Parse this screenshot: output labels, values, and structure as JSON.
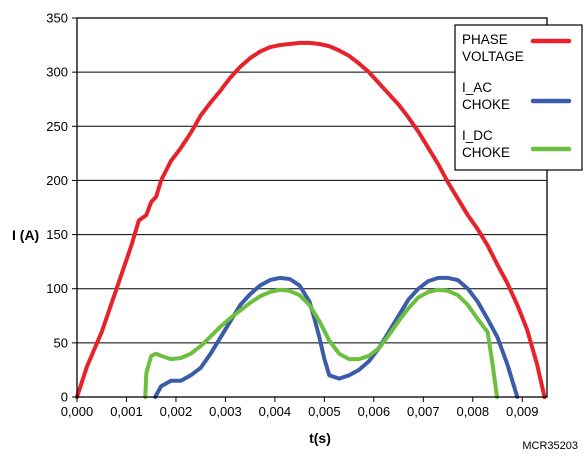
{
  "chart_data": {
    "type": "line",
    "title": "",
    "xlabel": "t(s)",
    "ylabel": "I (A)",
    "xlim": [
      0,
      0.0095
    ],
    "ylim": [
      0,
      350
    ],
    "grid": "horizontal",
    "legend_position": "top-right",
    "x_ticks": [
      {
        "value": 0.0,
        "label": "0,000"
      },
      {
        "value": 0.001,
        "label": "0,001"
      },
      {
        "value": 0.002,
        "label": "0,002"
      },
      {
        "value": 0.003,
        "label": "0,003"
      },
      {
        "value": 0.004,
        "label": "0,004"
      },
      {
        "value": 0.005,
        "label": "0,005"
      },
      {
        "value": 0.006,
        "label": "0,006"
      },
      {
        "value": 0.007,
        "label": "0,007"
      },
      {
        "value": 0.008,
        "label": "0,008"
      },
      {
        "value": 0.009,
        "label": "0,009"
      }
    ],
    "y_ticks": [
      {
        "value": 0,
        "label": "0"
      },
      {
        "value": 50,
        "label": "50"
      },
      {
        "value": 100,
        "label": "100"
      },
      {
        "value": 150,
        "label": "150"
      },
      {
        "value": 200,
        "label": "200"
      },
      {
        "value": 250,
        "label": "250"
      },
      {
        "value": 300,
        "label": "300"
      },
      {
        "value": 350,
        "label": "350"
      }
    ],
    "series": [
      {
        "name": "PHASE VOLTAGE",
        "legend_lines": [
          "PHASE",
          "VOLTAGE"
        ],
        "color": "#e8222b",
        "points": [
          [
            0.0,
            0
          ],
          [
            0.0002,
            28
          ],
          [
            0.0005,
            60
          ],
          [
            0.0008,
            100
          ],
          [
            0.0011,
            140
          ],
          [
            0.00125,
            163
          ],
          [
            0.0014,
            168
          ],
          [
            0.0015,
            180
          ],
          [
            0.0016,
            185
          ],
          [
            0.0017,
            200
          ],
          [
            0.0019,
            218
          ],
          [
            0.0021,
            230
          ],
          [
            0.0023,
            244
          ],
          [
            0.0025,
            260
          ],
          [
            0.0027,
            272
          ],
          [
            0.0029,
            283
          ],
          [
            0.0031,
            295
          ],
          [
            0.0033,
            305
          ],
          [
            0.0035,
            313
          ],
          [
            0.0037,
            319
          ],
          [
            0.0039,
            323
          ],
          [
            0.0041,
            325
          ],
          [
            0.0043,
            326
          ],
          [
            0.0045,
            327
          ],
          [
            0.0047,
            327
          ],
          [
            0.0049,
            326
          ],
          [
            0.0051,
            324
          ],
          [
            0.0053,
            320
          ],
          [
            0.0055,
            315
          ],
          [
            0.0057,
            308
          ],
          [
            0.0059,
            300
          ],
          [
            0.0061,
            290
          ],
          [
            0.0063,
            280
          ],
          [
            0.0065,
            270
          ],
          [
            0.0067,
            258
          ],
          [
            0.0069,
            245
          ],
          [
            0.0071,
            230
          ],
          [
            0.0073,
            215
          ],
          [
            0.0075,
            198
          ],
          [
            0.0077,
            183
          ],
          [
            0.0079,
            168
          ],
          [
            0.0081,
            155
          ],
          [
            0.0083,
            140
          ],
          [
            0.0085,
            122
          ],
          [
            0.0087,
            105
          ],
          [
            0.0089,
            85
          ],
          [
            0.0091,
            62
          ],
          [
            0.0093,
            30
          ],
          [
            0.00945,
            0
          ]
        ]
      },
      {
        "name": "I_AC CHOKE",
        "legend_lines": [
          "I_AC",
          "CHOKE"
        ],
        "color": "#3b5ca8",
        "points": [
          [
            0.00158,
            0
          ],
          [
            0.0017,
            10
          ],
          [
            0.0019,
            15
          ],
          [
            0.0021,
            15
          ],
          [
            0.0023,
            20
          ],
          [
            0.0025,
            27
          ],
          [
            0.0027,
            40
          ],
          [
            0.0029,
            55
          ],
          [
            0.0031,
            70
          ],
          [
            0.0033,
            85
          ],
          [
            0.0035,
            95
          ],
          [
            0.0037,
            103
          ],
          [
            0.0039,
            108
          ],
          [
            0.0041,
            110
          ],
          [
            0.0043,
            109
          ],
          [
            0.0045,
            103
          ],
          [
            0.0047,
            88
          ],
          [
            0.0048,
            72
          ],
          [
            0.0049,
            55
          ],
          [
            0.005,
            35
          ],
          [
            0.0051,
            20
          ],
          [
            0.0053,
            17
          ],
          [
            0.0055,
            20
          ],
          [
            0.0057,
            25
          ],
          [
            0.0059,
            33
          ],
          [
            0.0061,
            45
          ],
          [
            0.0063,
            60
          ],
          [
            0.0065,
            75
          ],
          [
            0.0067,
            90
          ],
          [
            0.0069,
            100
          ],
          [
            0.0071,
            107
          ],
          [
            0.0073,
            110
          ],
          [
            0.0075,
            110
          ],
          [
            0.0077,
            108
          ],
          [
            0.0079,
            100
          ],
          [
            0.0081,
            88
          ],
          [
            0.0083,
            72
          ],
          [
            0.0085,
            55
          ],
          [
            0.0087,
            30
          ],
          [
            0.0089,
            0
          ]
        ]
      },
      {
        "name": "I_DC CHOKE",
        "legend_lines": [
          "I_DC",
          "CHOKE"
        ],
        "color": "#6cbf3f",
        "points": [
          [
            0.00138,
            0
          ],
          [
            0.0014,
            22
          ],
          [
            0.0015,
            38
          ],
          [
            0.0016,
            40
          ],
          [
            0.0017,
            38
          ],
          [
            0.0019,
            35
          ],
          [
            0.0021,
            36
          ],
          [
            0.0023,
            40
          ],
          [
            0.0025,
            47
          ],
          [
            0.0027,
            56
          ],
          [
            0.0029,
            65
          ],
          [
            0.0031,
            73
          ],
          [
            0.0033,
            80
          ],
          [
            0.0035,
            87
          ],
          [
            0.0037,
            93
          ],
          [
            0.0039,
            97
          ],
          [
            0.0041,
            99
          ],
          [
            0.0043,
            98
          ],
          [
            0.0045,
            94
          ],
          [
            0.0047,
            85
          ],
          [
            0.0049,
            70
          ],
          [
            0.0051,
            52
          ],
          [
            0.0053,
            40
          ],
          [
            0.0055,
            35
          ],
          [
            0.0057,
            35
          ],
          [
            0.0059,
            38
          ],
          [
            0.0061,
            45
          ],
          [
            0.0063,
            57
          ],
          [
            0.0065,
            70
          ],
          [
            0.0067,
            82
          ],
          [
            0.0069,
            92
          ],
          [
            0.0071,
            97
          ],
          [
            0.0073,
            99
          ],
          [
            0.0075,
            98
          ],
          [
            0.0077,
            94
          ],
          [
            0.0079,
            85
          ],
          [
            0.0081,
            72
          ],
          [
            0.0083,
            60
          ],
          [
            0.0084,
            30
          ],
          [
            0.00849,
            0
          ]
        ]
      }
    ],
    "credit": "MCR35203"
  }
}
